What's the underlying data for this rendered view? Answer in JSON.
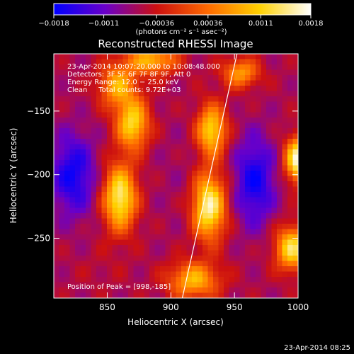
{
  "chart_data": {
    "type": "heatmap",
    "title": "Reconstructed RHESSI Image",
    "xlabel": "Heliocentric X (arcsec)",
    "ylabel": "Heliocentric Y (arcsec)",
    "xlim": [
      808,
      1000
    ],
    "ylim": [
      -297,
      -105
    ],
    "x_ticks": [
      850,
      900,
      950,
      1000
    ],
    "y_ticks": [
      -150,
      -200,
      -250
    ],
    "x_tick_labels": [
      "850",
      "900",
      "950",
      "1000"
    ],
    "y_tick_labels": [
      "−150",
      "−200",
      "−250"
    ],
    "colorbar": {
      "range": [
        -0.0018,
        0.0018
      ],
      "ticks": [
        -0.0018,
        -0.0011,
        -0.00036,
        0.00036,
        0.0011,
        0.0018
      ],
      "tick_labels": [
        "−0.0018",
        "−0.0011",
        "−0.00036",
        "0.00036",
        "0.0011",
        "0.0018"
      ],
      "unit_label": "(photons cm⁻² s⁻¹ asec⁻²)",
      "colormap": [
        "#0000ff",
        "#6a00c8",
        "#cc1010",
        "#ff6a00",
        "#ffd000",
        "#ffffff"
      ]
    },
    "annotations": [
      "23-Apr-2014 10:07:20.000 to 10:08:48.000",
      "Detectors: 3F 5F 6F 7F 8F 9F, Att 0",
      "Energy Range: 12.0 − 25.0 keV",
      "Clean     Total counts: 9.72E+03"
    ],
    "peak_label": "Position of Peak = [998,-185]",
    "peak_position": [
      998,
      -185
    ],
    "limb_line": [
      [
        909,
        -297
      ],
      [
        952,
        -105
      ]
    ],
    "blobs": [
      {
        "x": 823,
        "y": -200,
        "value": -0.0017,
        "sx": 12,
        "sy": 22
      },
      {
        "x": 966,
        "y": -205,
        "value": -0.0017,
        "sx": 11,
        "sy": 24
      },
      {
        "x": 905,
        "y": -200,
        "value": -0.0007,
        "sx": 14,
        "sy": 30
      },
      {
        "x": 860,
        "y": -218,
        "value": 0.0015,
        "sx": 9,
        "sy": 18
      },
      {
        "x": 870,
        "y": -160,
        "value": 0.0012,
        "sx": 9,
        "sy": 14
      },
      {
        "x": 858,
        "y": -130,
        "value": 0.0008,
        "sx": 10,
        "sy": 12
      },
      {
        "x": 930,
        "y": -225,
        "value": 0.0016,
        "sx": 9,
        "sy": 18
      },
      {
        "x": 932,
        "y": -165,
        "value": 0.0012,
        "sx": 8,
        "sy": 14
      },
      {
        "x": 918,
        "y": -283,
        "value": 0.0009,
        "sx": 14,
        "sy": 10
      },
      {
        "x": 1000,
        "y": -188,
        "value": 0.0017,
        "sx": 7,
        "sy": 12
      },
      {
        "x": 995,
        "y": -258,
        "value": 0.0013,
        "sx": 9,
        "sy": 12
      },
      {
        "x": 885,
        "y": -110,
        "value": 0.0009,
        "sx": 14,
        "sy": 8
      },
      {
        "x": 955,
        "y": -120,
        "value": 0.0007,
        "sx": 10,
        "sy": 8
      },
      {
        "x": 845,
        "y": -275,
        "value": -0.0005,
        "sx": 14,
        "sy": 12
      }
    ]
  },
  "footer": {
    "timestamp": "23-Apr-2014 08:25"
  }
}
